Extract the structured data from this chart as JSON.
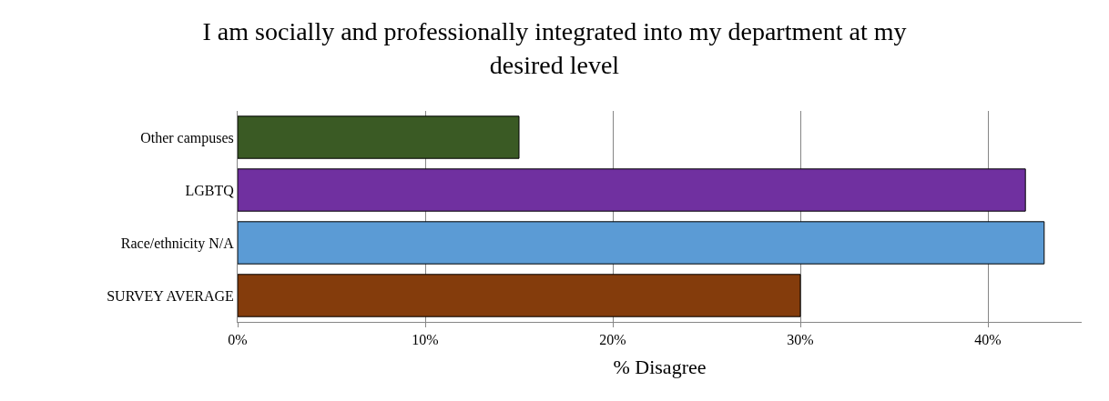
{
  "chart_data": {
    "type": "bar",
    "orientation": "horizontal",
    "title": "I am socially and professionally integrated into my department at my desired level",
    "xlabel": "% Disagree",
    "categories": [
      "Other campuses",
      "LGBTQ",
      "Race/ethnicity N/A",
      "SURVEY AVERAGE"
    ],
    "values": [
      15,
      42,
      43,
      30
    ],
    "colors": [
      "#3a5a24",
      "#7030a0",
      "#5b9bd5",
      "#843c0c"
    ],
    "xlim": [
      0,
      45
    ],
    "xticks": [
      {
        "value": 0,
        "label": "0%"
      },
      {
        "value": 10,
        "label": "10%"
      },
      {
        "value": 20,
        "label": "20%"
      },
      {
        "value": 30,
        "label": "30%"
      },
      {
        "value": 40,
        "label": "40%"
      }
    ],
    "grid": "x"
  }
}
